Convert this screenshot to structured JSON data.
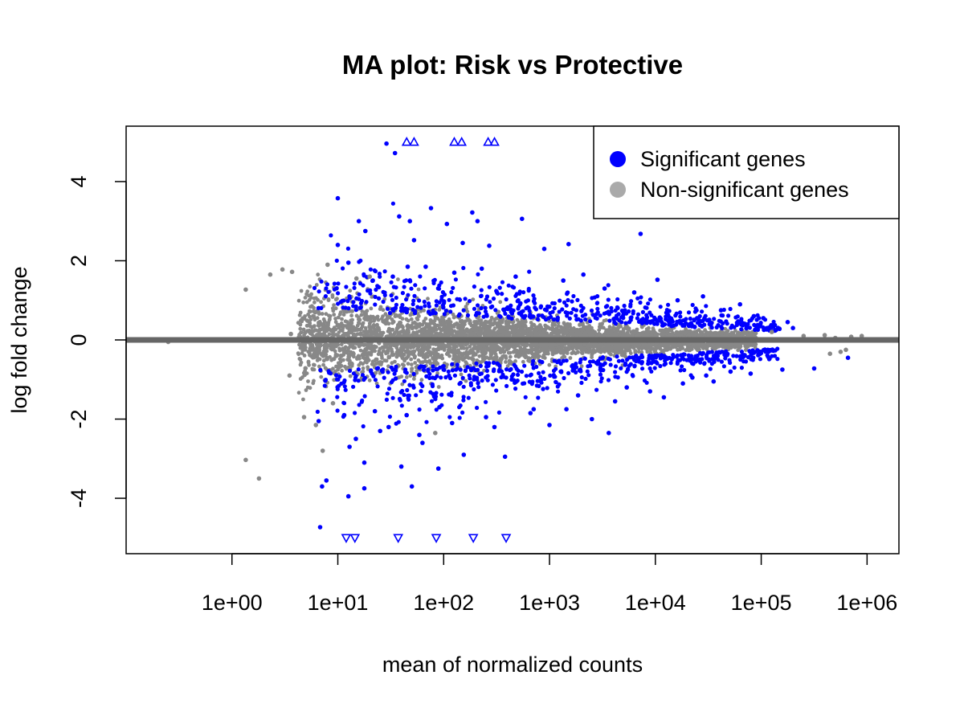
{
  "chart_data": {
    "type": "scatter",
    "title": "MA plot: Risk vs Protective",
    "xlabel": "mean of normalized counts",
    "ylabel": "log fold change",
    "x_scale": "log10",
    "xlim": [
      0.1,
      2000000
    ],
    "ylim": [
      -5.4,
      5.4
    ],
    "x_ticks": [
      1,
      10,
      100,
      1000,
      10000,
      100000,
      1000000
    ],
    "x_tick_labels": [
      "1e+00",
      "1e+01",
      "1e+02",
      "1e+03",
      "1e+04",
      "1e+05",
      "1e+06"
    ],
    "y_ticks": [
      -4,
      -2,
      0,
      2,
      4
    ],
    "y_tick_labels": [
      "-4",
      "-2",
      "0",
      "2",
      "4"
    ],
    "hline": 0,
    "grid": false,
    "legend": {
      "position": "top-right",
      "entries": [
        {
          "label": "Significant genes",
          "color": "#0000ff"
        },
        {
          "label": "Non-significant genes",
          "color": "#aaaaaa"
        }
      ]
    },
    "series": [
      {
        "name": "Significant genes",
        "color": "#0000ff",
        "points": [
          [
            10.0,
            3.58
          ],
          [
            28.8,
            4.96
          ],
          [
            34.7,
            4.72
          ],
          [
            38.0,
            3.12
          ],
          [
            75.9,
            3.33
          ],
          [
            47.9,
            3.0
          ],
          [
            107.2,
            2.93
          ],
          [
            186.2,
            3.22
          ],
          [
            208.9,
            3.0
          ],
          [
            549.5,
            3.06
          ],
          [
            7244.4,
            2.68
          ],
          [
            1513.6,
            2.42
          ],
          [
            269.2,
            2.38
          ],
          [
            52.5,
            2.52
          ],
          [
            151.4,
            2.45
          ],
          [
            10.0,
            2.4
          ],
          [
            15.8,
            3.0
          ],
          [
            18.2,
            2.75
          ],
          [
            12.6,
            1.95
          ],
          [
            45.7,
            1.85
          ],
          [
            891.3,
            2.3
          ],
          [
            2089.3,
            1.65
          ],
          [
            10471.3,
            1.52
          ],
          [
            6309.6,
            1.2
          ],
          [
            28183.8,
            1.1
          ],
          [
            63095.7,
            0.9
          ],
          [
            104712.9,
            0.55
          ],
          [
            177827.9,
            0.45
          ],
          [
            199526.2,
            0.3
          ],
          [
            6.8,
            -4.73
          ],
          [
            7.1,
            -3.7
          ],
          [
            7.8,
            -3.55
          ],
          [
            12.6,
            -3.95
          ],
          [
            17.8,
            -3.75
          ],
          [
            39.8,
            -3.2
          ],
          [
            50.1,
            -3.7
          ],
          [
            89.1,
            -3.25
          ],
          [
            380.2,
            -2.95
          ],
          [
            3630.8,
            -2.35
          ],
          [
            154.9,
            -2.9
          ],
          [
            17.8,
            -3.1
          ],
          [
            12.9,
            -2.7
          ],
          [
            6.6,
            -2.05
          ],
          [
            25.1,
            -2.3
          ],
          [
            63.1,
            -2.6
          ],
          [
            1000.0,
            -2.15
          ],
          [
            2512.0,
            -2.0
          ],
          [
            12022.6,
            -1.45
          ],
          [
            35481.3,
            -1.05
          ],
          [
            79432.8,
            -0.85
          ],
          [
            158489.3,
            -0.75
          ],
          [
            660693.4,
            -0.45
          ],
          [
            316227.8,
            -0.72
          ],
          [
            21.4,
            1.5
          ],
          [
            33.1,
            1.6
          ],
          [
            67.6,
            1.85
          ],
          [
            125.9,
            1.7
          ],
          [
            229.1,
            1.8
          ],
          [
            478.6,
            1.6
          ],
          [
            1348.9,
            1.5
          ],
          [
            3311.3,
            1.3
          ],
          [
            16218.1,
            1.0
          ],
          [
            41686.9,
            0.75
          ],
          [
            85113.8,
            0.6
          ],
          [
            22.4,
            -1.8
          ],
          [
            44.7,
            -1.9
          ],
          [
            91.2,
            -1.7
          ],
          [
            251.2,
            -1.95
          ],
          [
            707.9,
            -1.75
          ],
          [
            1862.1,
            -1.4
          ],
          [
            5370.3,
            -1.2
          ],
          [
            22387.2,
            -0.95
          ],
          [
            51286.1,
            -0.8
          ],
          [
            11.5,
            -1.9
          ],
          [
            14.8,
            -2.5
          ],
          [
            30.2,
            -2.2
          ],
          [
            58.9,
            -2.4
          ],
          [
            120.2,
            -2.1
          ],
          [
            302.0,
            -2.2
          ],
          [
            660.7,
            -1.85
          ],
          [
            1445.4,
            -1.75
          ],
          [
            4168.7,
            -1.55
          ],
          [
            8912.5,
            -1.3
          ],
          [
            18197.0,
            -1.1
          ],
          [
            30199.5,
            -0.9
          ]
        ]
      },
      {
        "name": "Non-significant genes",
        "color": "#888888",
        "points": [
          [
            0.25,
            -0.05
          ],
          [
            1.35,
            1.27
          ],
          [
            1.35,
            -3.03
          ],
          [
            1.8,
            -3.5
          ],
          [
            2.3,
            1.65
          ],
          [
            3.0,
            1.78
          ],
          [
            3.7,
            1.72
          ],
          [
            3.6,
            0.15
          ],
          [
            3.5,
            -0.9
          ],
          [
            4.8,
            -1.95
          ],
          [
            6.2,
            -2.15
          ],
          [
            7.2,
            -2.8
          ],
          [
            83.2,
            -2.35
          ],
          [
            177.8,
            0.42
          ],
          [
            891.3,
            0.2
          ],
          [
            125892.5,
            0.2
          ],
          [
            251188.6,
            0.1
          ],
          [
            398107.2,
            0.12
          ],
          [
            501187.2,
            0.05
          ],
          [
            707945.8,
            0.08
          ],
          [
            891250.9,
            0.1
          ],
          [
            630957.3,
            -0.25
          ],
          [
            446683.6,
            -0.35
          ],
          [
            562341.3,
            -0.3
          ],
          [
            20.0,
            1.6
          ],
          [
            15.0,
            1.55
          ],
          [
            8.0,
            1.9
          ],
          [
            9.0,
            -1.6
          ]
        ]
      },
      {
        "name": "Significant genes (above ylim)",
        "marker": "triangle-up",
        "color": "#0000ff",
        "points": [
          [
            44.7,
            5.0
          ],
          [
            52.5,
            5.0
          ],
          [
            125.9,
            5.0
          ],
          [
            147.9,
            5.0
          ],
          [
            263.0,
            5.0
          ],
          [
            302.0,
            5.0
          ]
        ]
      },
      {
        "name": "Significant genes (below ylim)",
        "marker": "triangle-down",
        "color": "#0000ff",
        "points": [
          [
            12.0,
            -5.0
          ],
          [
            14.5,
            -5.0
          ],
          [
            37.2,
            -5.0
          ],
          [
            85.1,
            -5.0
          ],
          [
            190.5,
            -5.0
          ],
          [
            389.0,
            -5.0
          ]
        ]
      }
    ]
  }
}
